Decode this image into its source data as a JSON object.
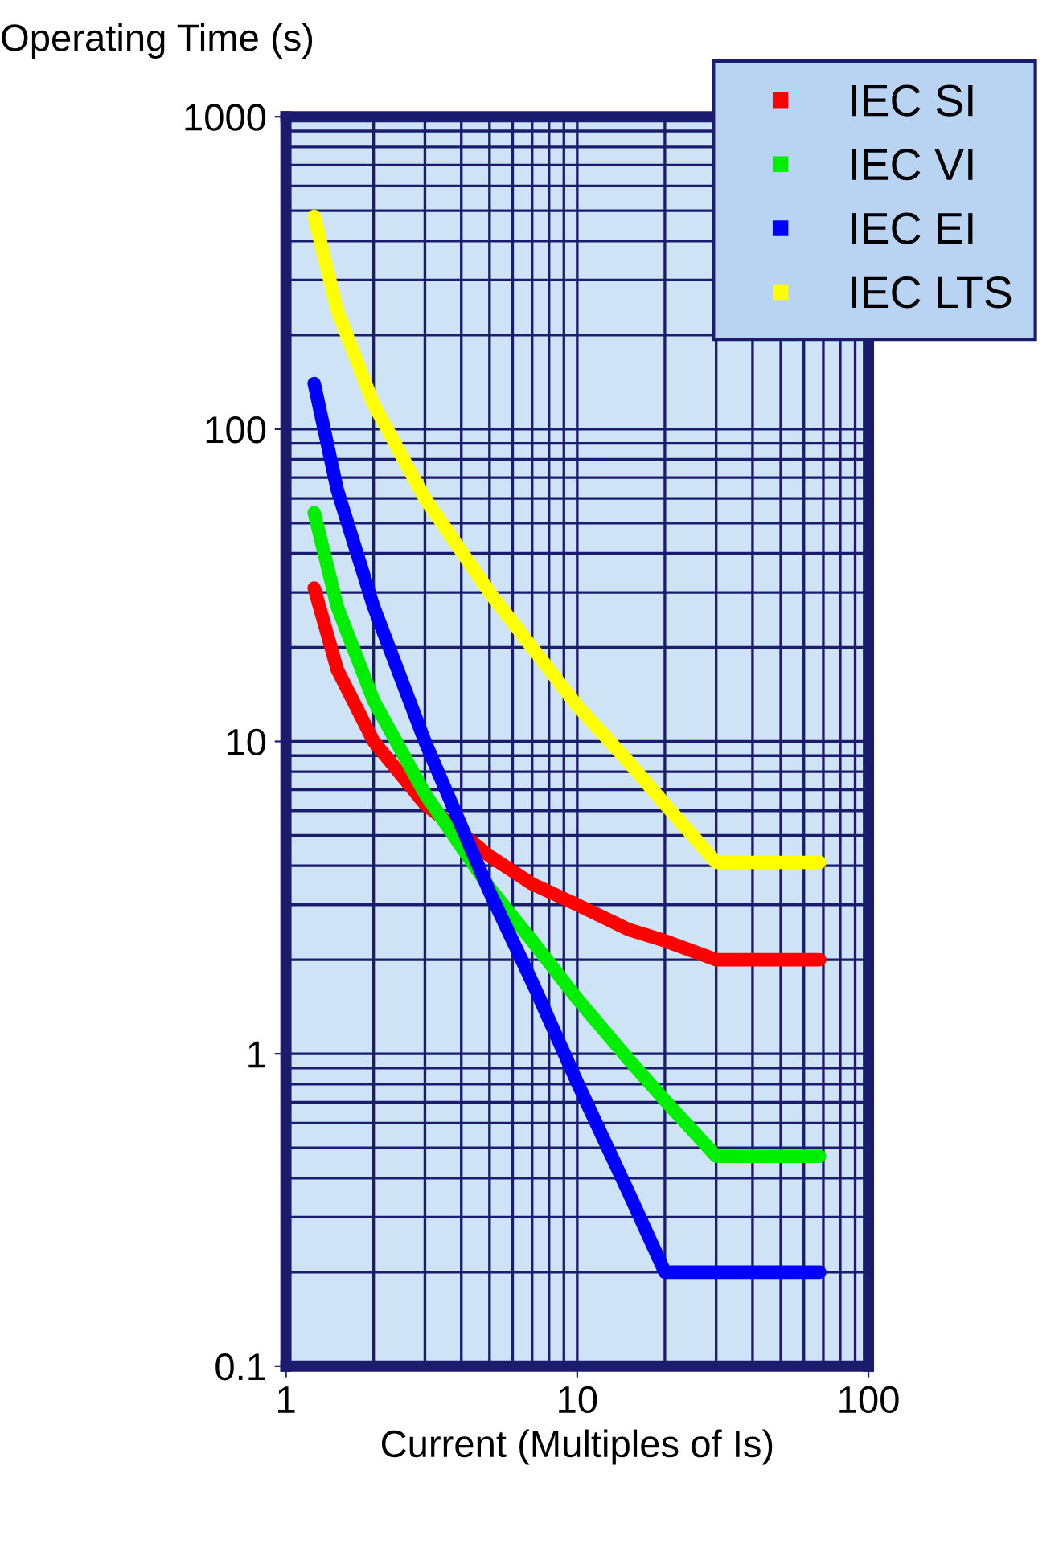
{
  "chart_data": {
    "type": "line",
    "xlabel": "Current (Multiples of Is)",
    "ylabel": "Operating Time (s)",
    "log": "xy",
    "xlim": [
      1,
      100
    ],
    "ylim": [
      0.1,
      1000
    ],
    "xticks": [
      1,
      10,
      100
    ],
    "yticks": [
      0.1,
      1,
      10,
      100,
      1000
    ],
    "grid": true,
    "legend": "top right",
    "marker": "none",
    "line_style": "solid",
    "series": [
      {
        "name": "IEC SI",
        "color": "#ff0000",
        "x": [
          1.25,
          1.5,
          2,
          3,
          5,
          7,
          10,
          15,
          20,
          30,
          68
        ],
        "values": [
          31,
          17,
          10,
          6.3,
          4.3,
          3.5,
          3.0,
          2.5,
          2.3,
          2.0,
          2.0
        ]
      },
      {
        "name": "IEC VI",
        "color": "#00ee00",
        "x": [
          1.25,
          1.5,
          2,
          3,
          5,
          7,
          10,
          15,
          20,
          30,
          68
        ],
        "values": [
          54,
          27,
          13.5,
          6.8,
          3.4,
          2.3,
          1.5,
          0.96,
          0.71,
          0.47,
          0.47
        ]
      },
      {
        "name": "IEC EI",
        "color": "#0000ff",
        "x": [
          1.25,
          1.5,
          2,
          3,
          5,
          7,
          10,
          15,
          20,
          68
        ],
        "values": [
          140,
          64,
          27,
          10,
          3.3,
          1.7,
          0.81,
          0.36,
          0.2,
          0.2
        ]
      },
      {
        "name": "IEC LTS",
        "color": "#ffff00",
        "x": [
          1.25,
          1.5,
          2,
          3,
          5,
          7,
          10,
          15,
          20,
          30,
          68
        ],
        "values": [
          480,
          240,
          120,
          60,
          30,
          20,
          13,
          8.6,
          6.3,
          4.1,
          4.1
        ]
      }
    ]
  }
}
